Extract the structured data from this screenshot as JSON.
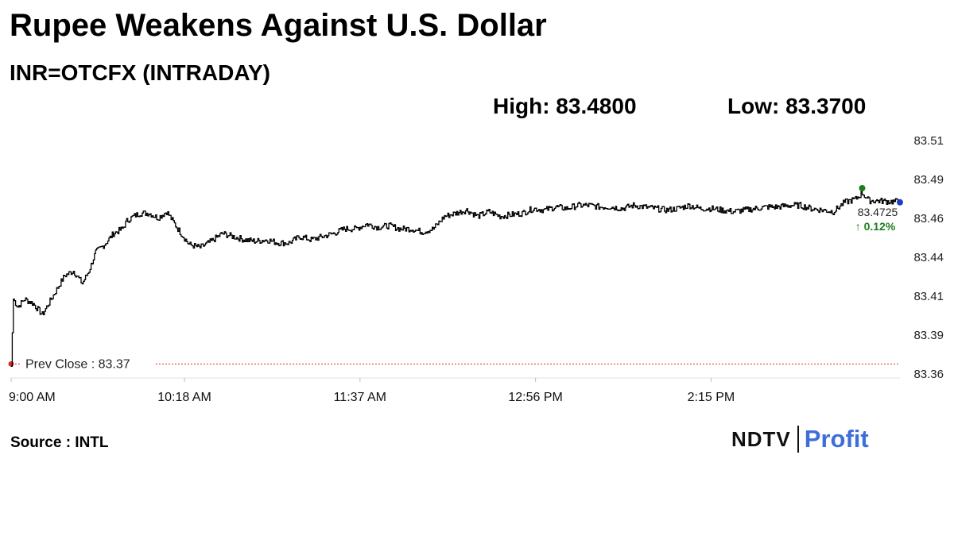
{
  "title": "Rupee Weakens Against U.S. Dollar",
  "subtitle": "INR=OTCFX (INTRADAY)",
  "high_label": "High: 83.4800",
  "low_label": "Low: 83.3700",
  "source": "Source : INTL",
  "logo": {
    "brand": "NDTV",
    "product": "Profit"
  },
  "colors": {
    "line": "#000000",
    "prev_close": "#d32f2f",
    "high_marker": "#1e7e1e",
    "last_marker": "#1f3fbf",
    "change_positive": "#1e7e1e",
    "logo_profit": "#3e6fd8"
  },
  "chart_data": {
    "type": "line",
    "title": "INR=OTCFX (INTRADAY)",
    "x_ticks": [
      "9:00 AM",
      "10:18 AM",
      "11:37 AM",
      "12:56 PM",
      "2:15 PM"
    ],
    "x_tick_minutes": [
      0,
      78,
      157,
      236,
      315
    ],
    "y_ticks": [
      "83.51",
      "83.49",
      "83.46",
      "83.44",
      "83.41",
      "83.39",
      "83.36"
    ],
    "ylim": [
      83.36,
      83.51
    ],
    "xlim_minutes": [
      0,
      400
    ],
    "prev_close": {
      "label": "Prev Close : 83.37",
      "value": 83.37
    },
    "last": {
      "value_label": "83.4725",
      "change_label": "↑ 0.12%",
      "value": 83.4725
    },
    "high_point": {
      "minute": 383,
      "value": 83.48
    },
    "series": [
      {
        "x_minutes": [
          0,
          1,
          3,
          6,
          10,
          14,
          18,
          20,
          24,
          28,
          32,
          35,
          38,
          42,
          46,
          50,
          52,
          55,
          58,
          62,
          66,
          70,
          75,
          80,
          85,
          90,
          95,
          100,
          105,
          110,
          115,
          120,
          125,
          130,
          135,
          140,
          145,
          150,
          155,
          160,
          165,
          170,
          175,
          180,
          185,
          190,
          195,
          200,
          205,
          210,
          215,
          220,
          225,
          230,
          235,
          240,
          245,
          250,
          255,
          260,
          265,
          270,
          275,
          280,
          285,
          290,
          295,
          300,
          305,
          310,
          315,
          320,
          325,
          330,
          335,
          340,
          345,
          350,
          355,
          360,
          365,
          370,
          375,
          380,
          383,
          386,
          390,
          395,
          400
        ],
        "values": [
          83.367,
          83.41,
          83.405,
          83.41,
          83.407,
          83.4,
          83.41,
          83.415,
          83.425,
          83.428,
          83.42,
          83.428,
          83.44,
          83.445,
          83.452,
          83.455,
          83.46,
          83.463,
          83.465,
          83.465,
          83.462,
          83.466,
          83.455,
          83.445,
          83.443,
          83.447,
          83.452,
          83.45,
          83.448,
          83.447,
          83.448,
          83.446,
          83.446,
          83.45,
          83.448,
          83.45,
          83.452,
          83.455,
          83.455,
          83.458,
          83.456,
          83.457,
          83.455,
          83.455,
          83.453,
          83.455,
          83.463,
          83.465,
          83.467,
          83.463,
          83.466,
          83.463,
          83.464,
          83.465,
          83.468,
          83.467,
          83.469,
          83.468,
          83.47,
          83.47,
          83.469,
          83.469,
          83.468,
          83.47,
          83.469,
          83.468,
          83.467,
          83.468,
          83.47,
          83.468,
          83.468,
          83.467,
          83.466,
          83.467,
          83.468,
          83.469,
          83.469,
          83.47,
          83.47,
          83.468,
          83.467,
          83.466,
          83.472,
          83.474,
          83.478,
          83.473,
          83.473,
          83.4725,
          83.4725
        ]
      }
    ]
  }
}
